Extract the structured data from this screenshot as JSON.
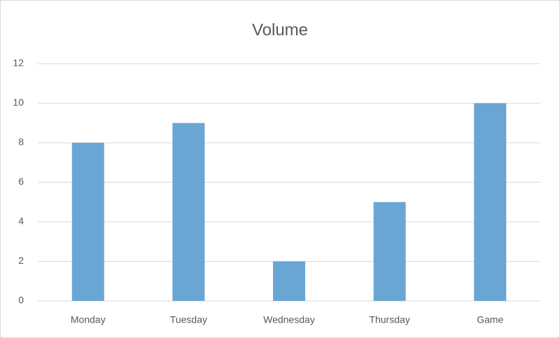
{
  "chart_data": {
    "type": "bar",
    "title": "Volume",
    "categories": [
      "Monday",
      "Tuesday",
      "Wednesday",
      "Thursday",
      "Game"
    ],
    "values": [
      8,
      9,
      2,
      5,
      10
    ],
    "color": "#6aa6d4",
    "ylim": [
      0,
      12
    ],
    "yticks": [
      0,
      2,
      4,
      6,
      8,
      10,
      12
    ],
    "grid": true
  }
}
